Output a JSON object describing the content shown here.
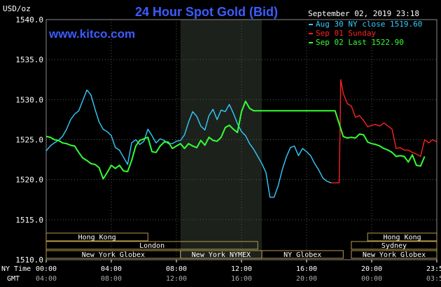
{
  "header": {
    "title": "24 Hour Spot Gold (Bid)",
    "ylabel": "USD/oz",
    "site": "www.kitco.com",
    "datetime": "September 02, 2019 23:18"
  },
  "legend": [
    {
      "label": "Aug 30 NY close 1519.60",
      "color": "#33ccff"
    },
    {
      "label": "Sep 01 Sunday",
      "color": "#ff2020"
    },
    {
      "label": "Sep 02 Last 1522.90",
      "color": "#33ff33"
    }
  ],
  "axis_rows": {
    "nytime_label": "NY Time",
    "gmt_label": "GMT",
    "nytime_ticks": [
      "00:00",
      "04:00",
      "08:00",
      "12:00",
      "16:00",
      "20:00",
      "23:59"
    ],
    "gmt_ticks": [
      "04:00",
      "08:00",
      "12:00",
      "16:00",
      "20:00",
      "00:00",
      "03:59"
    ]
  },
  "market_sessions": [
    {
      "name": "Hong Kong",
      "row": 1
    },
    {
      "name": "Hong Kong",
      "row": 1
    },
    {
      "name": "London",
      "row": 2
    },
    {
      "name": "Sydney",
      "row": 2
    },
    {
      "name": "New York Globex",
      "row": 3
    },
    {
      "name": "New York NYMEX",
      "row": 3
    },
    {
      "name": "NY Globex",
      "row": 3
    },
    {
      "name": "New York Globex",
      "row": 3
    }
  ],
  "colors": {
    "background": "#000000",
    "title": "#3c5cff",
    "site": "#3c5cff",
    "session_border": "#b89a4a",
    "session_text": "#ffffff",
    "shade": "#1c211c",
    "grid": "#555555"
  },
  "chart_data": {
    "type": "line",
    "title": "24 Hour Spot Gold (Bid)",
    "ylabel": "USD/oz",
    "x_unit": "NY time hours",
    "xlim": [
      0,
      24
    ],
    "ylim": [
      1510,
      1540
    ],
    "yticks": [
      1510.0,
      1515.0,
      1520.0,
      1525.0,
      1530.0,
      1535.0,
      1540.0
    ],
    "grid": true,
    "shaded_hours": [
      8.25,
      13.25
    ],
    "series": [
      {
        "name": "Aug 30 NY close 1519.60",
        "color": "#33ccff",
        "x": [
          0,
          0.25,
          0.5,
          0.75,
          1,
          1.25,
          1.5,
          1.75,
          2,
          2.25,
          2.5,
          2.75,
          3,
          3.25,
          3.5,
          3.75,
          4,
          4.25,
          4.5,
          4.75,
          5,
          5.25,
          5.5,
          5.75,
          6,
          6.25,
          6.5,
          6.75,
          7,
          7.25,
          7.5,
          7.75,
          8,
          8.25,
          8.5,
          8.75,
          9,
          9.25,
          9.5,
          9.75,
          10,
          10.25,
          10.5,
          10.75,
          11,
          11.25,
          11.5,
          11.75,
          12,
          12.25,
          12.5,
          12.75,
          13,
          13.25,
          13.5,
          13.75,
          14,
          14.25,
          14.5,
          14.75,
          15,
          15.25,
          15.5,
          15.75,
          16,
          16.25,
          16.5,
          16.75,
          17,
          17.25,
          17.5
        ],
        "values": [
          1523.6,
          1524.2,
          1524.6,
          1524.9,
          1525.4,
          1526.3,
          1527.5,
          1528.2,
          1528.6,
          1529.9,
          1531.2,
          1530.6,
          1528.8,
          1527.2,
          1526.3,
          1526.0,
          1525.5,
          1524.0,
          1523.7,
          1522.8,
          1521.9,
          1524.6,
          1525.0,
          1524.4,
          1524.8,
          1526.3,
          1525.5,
          1524.6,
          1525.1,
          1524.9,
          1524.5,
          1524.5,
          1524.8,
          1524.9,
          1525.6,
          1527.2,
          1528.5,
          1527.9,
          1526.7,
          1526.2,
          1528.0,
          1528.8,
          1527.5,
          1528.7,
          1528.5,
          1529.4,
          1528.3,
          1527.0,
          1526.0,
          1525.5,
          1524.5,
          1523.8,
          1522.9,
          1522.0,
          1520.9,
          1517.8,
          1517.8,
          1519.2,
          1521.2,
          1522.8,
          1524.0,
          1524.2,
          1523.0,
          1523.9,
          1523.5,
          1523.0,
          1522.0,
          1521.2,
          1520.2,
          1519.8,
          1519.6
        ]
      },
      {
        "name": "Sep 01 Sunday",
        "color": "#ff2020",
        "x": [
          17.5,
          17.75,
          18,
          18.05,
          18.1,
          18.25,
          18.5,
          18.75,
          19,
          19.25,
          19.5,
          19.75,
          20,
          20.25,
          20.5,
          20.75,
          21,
          21.25,
          21.5,
          21.75,
          22,
          22.25,
          22.5,
          22.75,
          23,
          23.25,
          23.5,
          23.75,
          24
        ],
        "values": [
          1519.6,
          1519.6,
          1519.6,
          1525.5,
          1532.5,
          1530.8,
          1529.5,
          1529.2,
          1527.8,
          1528.0,
          1527.4,
          1526.6,
          1526.8,
          1526.9,
          1526.7,
          1527.1,
          1526.7,
          1526.3,
          1523.9,
          1524.0,
          1523.7,
          1523.7,
          1523.4,
          1523.2,
          1522.9,
          1525.0,
          1524.6,
          1525.0,
          1524.7
        ]
      },
      {
        "name": "Sep 02 Last 1522.90",
        "color": "#33ff33",
        "x": [
          0,
          0.25,
          0.5,
          0.75,
          1,
          1.25,
          1.5,
          1.75,
          2,
          2.25,
          2.5,
          2.75,
          3,
          3.25,
          3.5,
          3.75,
          4,
          4.25,
          4.5,
          4.75,
          5,
          5.25,
          5.5,
          5.75,
          6,
          6.25,
          6.5,
          6.75,
          7,
          7.25,
          7.5,
          7.75,
          8,
          8.25,
          8.5,
          8.75,
          9,
          9.25,
          9.5,
          9.75,
          10,
          10.25,
          10.5,
          10.75,
          11,
          11.25,
          11.5,
          11.75,
          12,
          12.25,
          12.5,
          12.75,
          13,
          13.25,
          13.5,
          17.75,
          18,
          18.25,
          18.5,
          18.75,
          19,
          19.25,
          19.5,
          19.75,
          20,
          20.25,
          20.5,
          20.75,
          21,
          21.25,
          21.5,
          21.75,
          22,
          22.25,
          22.5,
          22.75,
          23,
          23.25
        ],
        "values": [
          1525.4,
          1525.3,
          1525.0,
          1524.9,
          1524.6,
          1524.5,
          1524.3,
          1524.2,
          1523.4,
          1522.7,
          1522.4,
          1522.0,
          1521.9,
          1521.5,
          1520.1,
          1520.9,
          1521.8,
          1521.4,
          1521.8,
          1521.1,
          1521.0,
          1522.4,
          1524.2,
          1524.9,
          1525.1,
          1525.3,
          1523.5,
          1523.4,
          1524.2,
          1524.7,
          1524.7,
          1523.9,
          1524.2,
          1524.5,
          1523.9,
          1524.5,
          1524.2,
          1524.0,
          1524.9,
          1524.3,
          1525.3,
          1524.9,
          1524.8,
          1525.3,
          1526.5,
          1526.8,
          1526.3,
          1525.9,
          1528.5,
          1529.8,
          1528.9,
          1528.6,
          1528.6,
          1528.6,
          1528.6,
          1528.6,
          1527.0,
          1525.4,
          1525.2,
          1525.3,
          1525.2,
          1525.7,
          1525.6,
          1524.7,
          1524.5,
          1524.4,
          1524.2,
          1523.9,
          1523.7,
          1523.4,
          1522.9,
          1523.0,
          1522.9,
          1522.2,
          1523.1,
          1521.8,
          1521.7,
          1522.9
        ]
      }
    ]
  }
}
